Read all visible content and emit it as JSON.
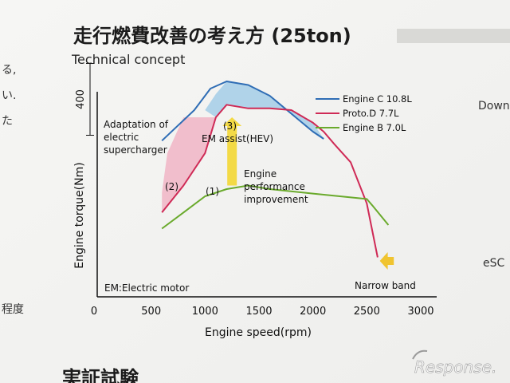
{
  "header": {
    "title": "走行燃費改善の考え方 (25ton)",
    "subtitle": "Technical concept"
  },
  "edge_fragments": {
    "left": [
      "る,",
      "い.",
      "た",
      "程度"
    ],
    "right": [
      "Down",
      "eSC"
    ],
    "bottom": "実証試験"
  },
  "watermark": "Response.",
  "chart_data": {
    "type": "line",
    "title": "走行燃費改善の考え方 (25ton)",
    "subtitle": "Technical concept",
    "xlabel": "Engine speed(rpm)",
    "ylabel": "Engine torque(Nm)",
    "xlim": [
      0,
      3000
    ],
    "x_ticks": [
      "0",
      "500",
      "1000",
      "1500",
      "2000",
      "2500",
      "3000"
    ],
    "ylim": [
      0,
      1200
    ],
    "y_scale_label": "400",
    "y_scale_span": [
      900,
      1300
    ],
    "series": [
      {
        "name": "Engine C 10.8L",
        "color": "#2f6db5",
        "points": [
          [
            600,
            870
          ],
          [
            900,
            1040
          ],
          [
            1050,
            1160
          ],
          [
            1200,
            1200
          ],
          [
            1400,
            1180
          ],
          [
            1600,
            1120
          ],
          [
            1800,
            1020
          ],
          [
            2000,
            920
          ],
          [
            2100,
            880
          ]
        ]
      },
      {
        "name": "Proto.D 7.7L",
        "color": "#cf2a56",
        "points": [
          [
            600,
            470
          ],
          [
            800,
            620
          ],
          [
            1000,
            800
          ],
          [
            1100,
            1000
          ],
          [
            1200,
            1070
          ],
          [
            1400,
            1050
          ],
          [
            1600,
            1050
          ],
          [
            1800,
            1040
          ],
          [
            2000,
            970
          ],
          [
            2100,
            920
          ],
          [
            2200,
            850
          ],
          [
            2350,
            750
          ],
          [
            2500,
            520
          ],
          [
            2600,
            220
          ]
        ]
      },
      {
        "name": "Engine B 7.0L",
        "color": "#6aaa2c",
        "points": [
          [
            600,
            380
          ],
          [
            800,
            470
          ],
          [
            1000,
            560
          ],
          [
            1200,
            600
          ],
          [
            1400,
            620
          ],
          [
            1600,
            600
          ],
          [
            2000,
            575
          ],
          [
            2500,
            545
          ],
          [
            2550,
            510
          ],
          [
            2700,
            400
          ]
        ]
      }
    ],
    "regions": [
      {
        "name": "electric-supercharger-area",
        "label": "(2)",
        "color": "#f1b8c8",
        "points": [
          [
            600,
            580
          ],
          [
            650,
            800
          ],
          [
            800,
            1000
          ],
          [
            1100,
            1000
          ],
          [
            1000,
            800
          ],
          [
            800,
            620
          ],
          [
            600,
            470
          ]
        ]
      },
      {
        "name": "em-assist-area",
        "label": "(3)",
        "color": "#a9cfe8",
        "points": [
          [
            1000,
            1040
          ],
          [
            1100,
            1130
          ],
          [
            1200,
            1200
          ],
          [
            1400,
            1180
          ],
          [
            1600,
            1120
          ],
          [
            1800,
            1020
          ],
          [
            2000,
            920
          ],
          [
            2100,
            880
          ],
          [
            2000,
            970
          ],
          [
            1800,
            1040
          ],
          [
            1600,
            1050
          ],
          [
            1400,
            1050
          ],
          [
            1200,
            1070
          ],
          [
            1100,
            1000
          ]
        ]
      }
    ],
    "annotations": {
      "adaptation": [
        "Adaptation of",
        "electric",
        "supercharger"
      ],
      "label_1": "(1)",
      "label_2": "(2)",
      "label_3": "(3)",
      "em_assist": "EM assist(HEV)",
      "engine_perf": [
        "Engine",
        "performance",
        "improvement"
      ],
      "em_note": "EM:Electric motor",
      "narrow_band": "Narrow band"
    },
    "arrow_up": {
      "x": 1250,
      "y_from": 620,
      "y_to": 1000,
      "color": "#f3da46"
    },
    "arrow_left": {
      "x_from": 2750,
      "x_to": 2620,
      "y": 200,
      "color": "#f0c430"
    }
  }
}
